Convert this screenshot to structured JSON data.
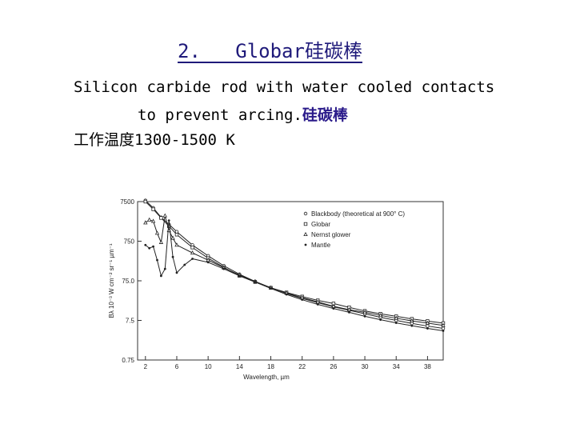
{
  "slide": {
    "title": "2.   Globar硅碳棒",
    "line1": "Silicon carbide rod with water cooled contacts",
    "line2_text": "to prevent arcing.",
    "line2_highlight": "硅碳棒",
    "line3": "工作温度1300-1500 K"
  },
  "chart_data": {
    "type": "line",
    "xlabel": "Wavelength, µm",
    "ylabel": "Bλ 10⁻³ W cm⁻² sr⁻¹ µm⁻¹",
    "x_ticks": [
      "2",
      "6",
      "10",
      "14",
      "18",
      "22",
      "26",
      "30",
      "34",
      "38"
    ],
    "y_ticks": [
      "7500",
      "750",
      "75.0",
      "7.5",
      "0.75"
    ],
    "y_scale": "log",
    "xlim": [
      1,
      40
    ],
    "legend_position": "top-right",
    "series": [
      {
        "name": "Blackbody (theoretical at 900° C)",
        "marker": "circle",
        "x": [
          2,
          3,
          4,
          5,
          6,
          8,
          10,
          12,
          14,
          16,
          18,
          20,
          22,
          24,
          26,
          28,
          30,
          32,
          34,
          36,
          38,
          40
        ],
        "y": [
          8000,
          5200,
          3000,
          2000,
          1300,
          600,
          320,
          180,
          110,
          72,
          50,
          36,
          27,
          21,
          16.5,
          13.5,
          11,
          9,
          7.5,
          6.3,
          5.4,
          4.7
        ]
      },
      {
        "name": "Globar",
        "marker": "square",
        "x": [
          2,
          3,
          4,
          5,
          6,
          8,
          10,
          12,
          14,
          16,
          18,
          20,
          22,
          24,
          26,
          28,
          30,
          32,
          34,
          36,
          38,
          40
        ],
        "y": [
          7500,
          4800,
          2900,
          1800,
          1100,
          520,
          280,
          165,
          100,
          70,
          50,
          38,
          30,
          24,
          20,
          16,
          13,
          11,
          9.5,
          8.2,
          7.2,
          6.4
        ]
      },
      {
        "name": "Nernst glower",
        "marker": "triangle",
        "x": [
          2,
          2.5,
          3,
          3.5,
          4,
          4.5,
          5,
          5.5,
          6,
          8,
          10,
          12,
          14,
          16,
          18,
          20,
          22,
          24,
          26,
          28,
          30,
          32,
          34,
          36,
          38,
          40
        ],
        "y": [
          2200,
          2600,
          2400,
          1200,
          700,
          3300,
          1400,
          900,
          600,
          380,
          250,
          160,
          105,
          72,
          50,
          37,
          28,
          22,
          17,
          14,
          12,
          10,
          8.5,
          7.3,
          6.4,
          5.6
        ]
      },
      {
        "name": "Mantle",
        "marker": "star",
        "x": [
          2,
          2.5,
          3,
          3.5,
          4,
          4.5,
          5,
          5.5,
          6,
          7,
          8,
          10,
          12,
          14,
          16,
          18,
          20,
          22,
          24,
          26,
          28,
          30,
          32,
          34,
          36,
          38,
          40
        ],
        "y": [
          600,
          500,
          550,
          250,
          100,
          150,
          2500,
          300,
          120,
          190,
          270,
          220,
          150,
          100,
          70,
          48,
          34,
          25,
          19,
          15,
          12,
          9.5,
          7.8,
          6.5,
          5.5,
          4.7,
          4.1
        ]
      }
    ]
  }
}
